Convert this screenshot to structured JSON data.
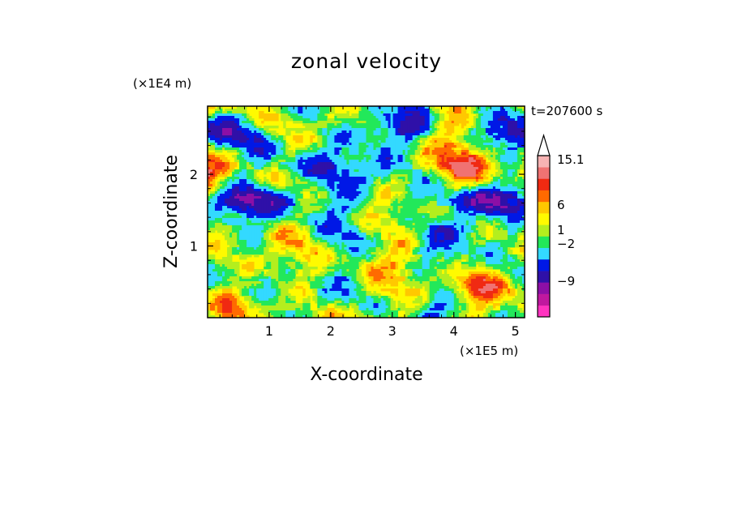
{
  "chart_data": {
    "type": "heatmap",
    "title": "zonal velocity",
    "xlabel": "X-coordinate",
    "ylabel": "Z-coordinate",
    "x_scale_note": "(×1E5 m)",
    "y_scale_note": "(×1E4 m)",
    "time_label": "t=207600 s",
    "xlim": [
      0,
      5.15
    ],
    "ylim": [
      0,
      2.95
    ],
    "x_ticks": [
      {
        "value": 1,
        "label": "1"
      },
      {
        "value": 2,
        "label": "2"
      },
      {
        "value": 3,
        "label": "3"
      },
      {
        "value": 4,
        "label": "4"
      },
      {
        "value": 5,
        "label": "5"
      }
    ],
    "y_ticks": [
      {
        "value": 1,
        "label": "1"
      },
      {
        "value": 2,
        "label": "2"
      }
    ],
    "colorbar": {
      "extend_top": true,
      "label_values": [
        {
          "value": 15.1,
          "label": "15.1"
        },
        {
          "value": 6,
          "label": "6"
        },
        {
          "value": 1,
          "label": "1"
        },
        {
          "value": -2,
          "label": "−2"
        },
        {
          "value": -9,
          "label": "−9"
        }
      ],
      "levels": [
        {
          "color": "#ff33c0"
        },
        {
          "color": "#c0189f"
        },
        {
          "color": "#8c0fa6"
        },
        {
          "color": "#2f10a8"
        },
        {
          "color": "#0018e6"
        },
        {
          "color": "#33d9ff"
        },
        {
          "color": "#22e85a"
        },
        {
          "color": "#b4ee1e"
        },
        {
          "color": "#fffa00"
        },
        {
          "color": "#ffc800"
        },
        {
          "color": "#ff6a00"
        },
        {
          "color": "#f02a12"
        },
        {
          "color": "#f07272"
        },
        {
          "color": "#f7b3b3"
        }
      ]
    }
  }
}
